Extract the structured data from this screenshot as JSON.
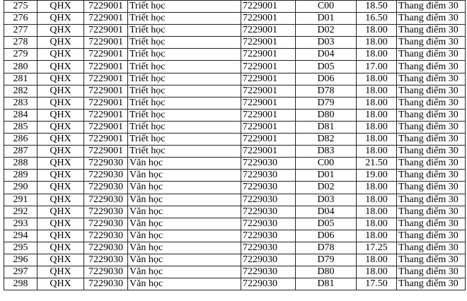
{
  "table": {
    "rows": [
      [
        "275",
        "QHX",
        "7229001",
        "Triết học",
        "7229001",
        "C00",
        "18.50",
        "Thang điểm 30"
      ],
      [
        "276",
        "QHX",
        "7229001",
        "Triết học",
        "7229001",
        "D01",
        "16.50",
        "Thang điểm 30"
      ],
      [
        "277",
        "QHX",
        "7229001",
        "Triết học",
        "7229001",
        "D02",
        "18.00",
        "Thang điểm 30"
      ],
      [
        "278",
        "QHX",
        "7229001",
        "Triết học",
        "7229001",
        "D03",
        "18.00",
        "Thang điểm 30"
      ],
      [
        "279",
        "QHX",
        "7229001",
        "Triết học",
        "7229001",
        "D04",
        "18.00",
        "Thang điểm 30"
      ],
      [
        "280",
        "QHX",
        "7229001",
        "Triết học",
        "7229001",
        "D05",
        "17.00",
        "Thang điểm 30"
      ],
      [
        "281",
        "QHX",
        "7229001",
        "Triết học",
        "7229001",
        "D06",
        "18.00",
        "Thang điểm 30"
      ],
      [
        "282",
        "QHX",
        "7229001",
        "Triết học",
        "7229001",
        "D78",
        "18.00",
        "Thang điểm 30"
      ],
      [
        "283",
        "QHX",
        "7229001",
        "Triết học",
        "7229001",
        "D79",
        "18.00",
        "Thang điểm 30"
      ],
      [
        "284",
        "QHX",
        "7229001",
        "Triết học",
        "7229001",
        "D80",
        "18.00",
        "Thang điểm 30"
      ],
      [
        "285",
        "QHX",
        "7229001",
        "Triết học",
        "7229001",
        "D81",
        "18.00",
        "Thang điểm 30"
      ],
      [
        "286",
        "QHX",
        "7229001",
        "Triết học",
        "7229001",
        "D82",
        "18.00",
        "Thang điểm 30"
      ],
      [
        "287",
        "QHX",
        "7229001",
        "Triết học",
        "7229001",
        "D83",
        "18.00",
        "Thang điểm 30"
      ],
      [
        "288",
        "QHX",
        "7229030",
        "Văn học",
        "7229030",
        "C00",
        "21.50",
        "Thang điểm 30"
      ],
      [
        "289",
        "QHX",
        "7229030",
        "Văn học",
        "7229030",
        "D01",
        "19.00",
        "Thang điểm 30"
      ],
      [
        "290",
        "QHX",
        "7229030",
        "Văn học",
        "7229030",
        "D02",
        "18.00",
        "Thang điểm 30"
      ],
      [
        "291",
        "QHX",
        "7229030",
        "Văn học",
        "7229030",
        "D03",
        "18.00",
        "Thang điểm 30"
      ],
      [
        "292",
        "QHX",
        "7229030",
        "Văn học",
        "7229030",
        "D04",
        "18.00",
        "Thang điểm 30"
      ],
      [
        "293",
        "QHX",
        "7229030",
        "Văn học",
        "7229030",
        "D05",
        "18.00",
        "Thang điểm 30"
      ],
      [
        "294",
        "QHX",
        "7229030",
        "Văn học",
        "7229030",
        "D06",
        "18.00",
        "Thang điểm 30"
      ],
      [
        "295",
        "QHX",
        "7229030",
        "Văn học",
        "7229030",
        "D78",
        "17.25",
        "Thang điểm 30"
      ],
      [
        "296",
        "QHX",
        "7229030",
        "Văn học",
        "7229030",
        "D79",
        "18.00",
        "Thang điểm 30"
      ],
      [
        "297",
        "QHX",
        "7229030",
        "Văn học",
        "7229030",
        "D80",
        "18.00",
        "Thang điểm 30"
      ],
      [
        "298",
        "QHX",
        "7229030",
        "Văn học",
        "7229030",
        "D81",
        "17.50",
        "Thang điểm 30"
      ]
    ]
  }
}
